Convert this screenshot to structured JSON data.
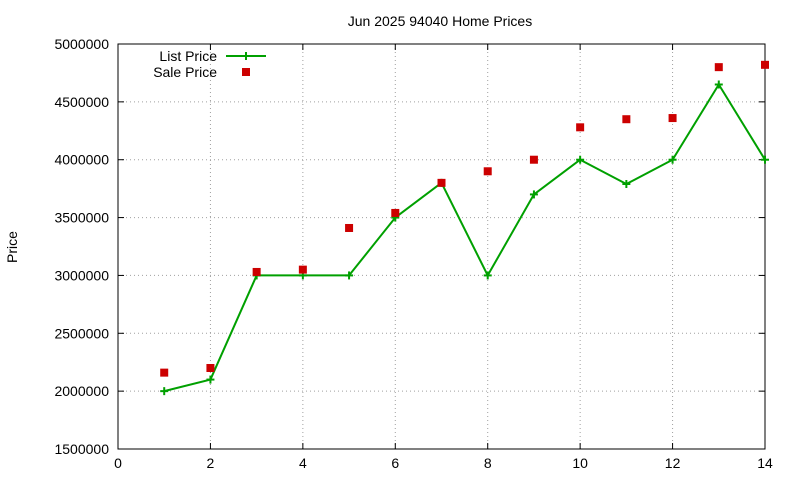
{
  "chart_data": {
    "type": "line",
    "title": "Jun 2025 94040 Home Prices",
    "xlabel": "",
    "ylabel": "Price",
    "xlim": [
      0,
      14
    ],
    "ylim": [
      1500000,
      5000000
    ],
    "x_ticks": [
      0,
      2,
      4,
      6,
      8,
      10,
      12,
      14
    ],
    "y_ticks": [
      1500000,
      2000000,
      2500000,
      3000000,
      3500000,
      4000000,
      4500000,
      5000000
    ],
    "grid": true,
    "legend_position": "top-left",
    "series": [
      {
        "name": "List Price",
        "style": "linespoints",
        "color": "#00a000",
        "marker": "plus",
        "x": [
          1,
          2,
          3,
          4,
          5,
          6,
          7,
          8,
          9,
          10,
          11,
          12,
          13,
          14
        ],
        "y": [
          2000000,
          2100000,
          3000000,
          3000000,
          3000000,
          3500000,
          3800000,
          3000000,
          3700000,
          4000000,
          3790000,
          4000000,
          4650000,
          4000000
        ]
      },
      {
        "name": "Sale Price",
        "style": "points",
        "color": "#cc0000",
        "marker": "square",
        "x": [
          1,
          2,
          3,
          4,
          5,
          6,
          7,
          8,
          9,
          10,
          11,
          12,
          13,
          14
        ],
        "y": [
          2160000,
          2200000,
          3030000,
          3050000,
          3410000,
          3540000,
          3800000,
          3900000,
          4000000,
          4280000,
          4350000,
          4360000,
          4800000,
          4820000
        ]
      }
    ]
  }
}
